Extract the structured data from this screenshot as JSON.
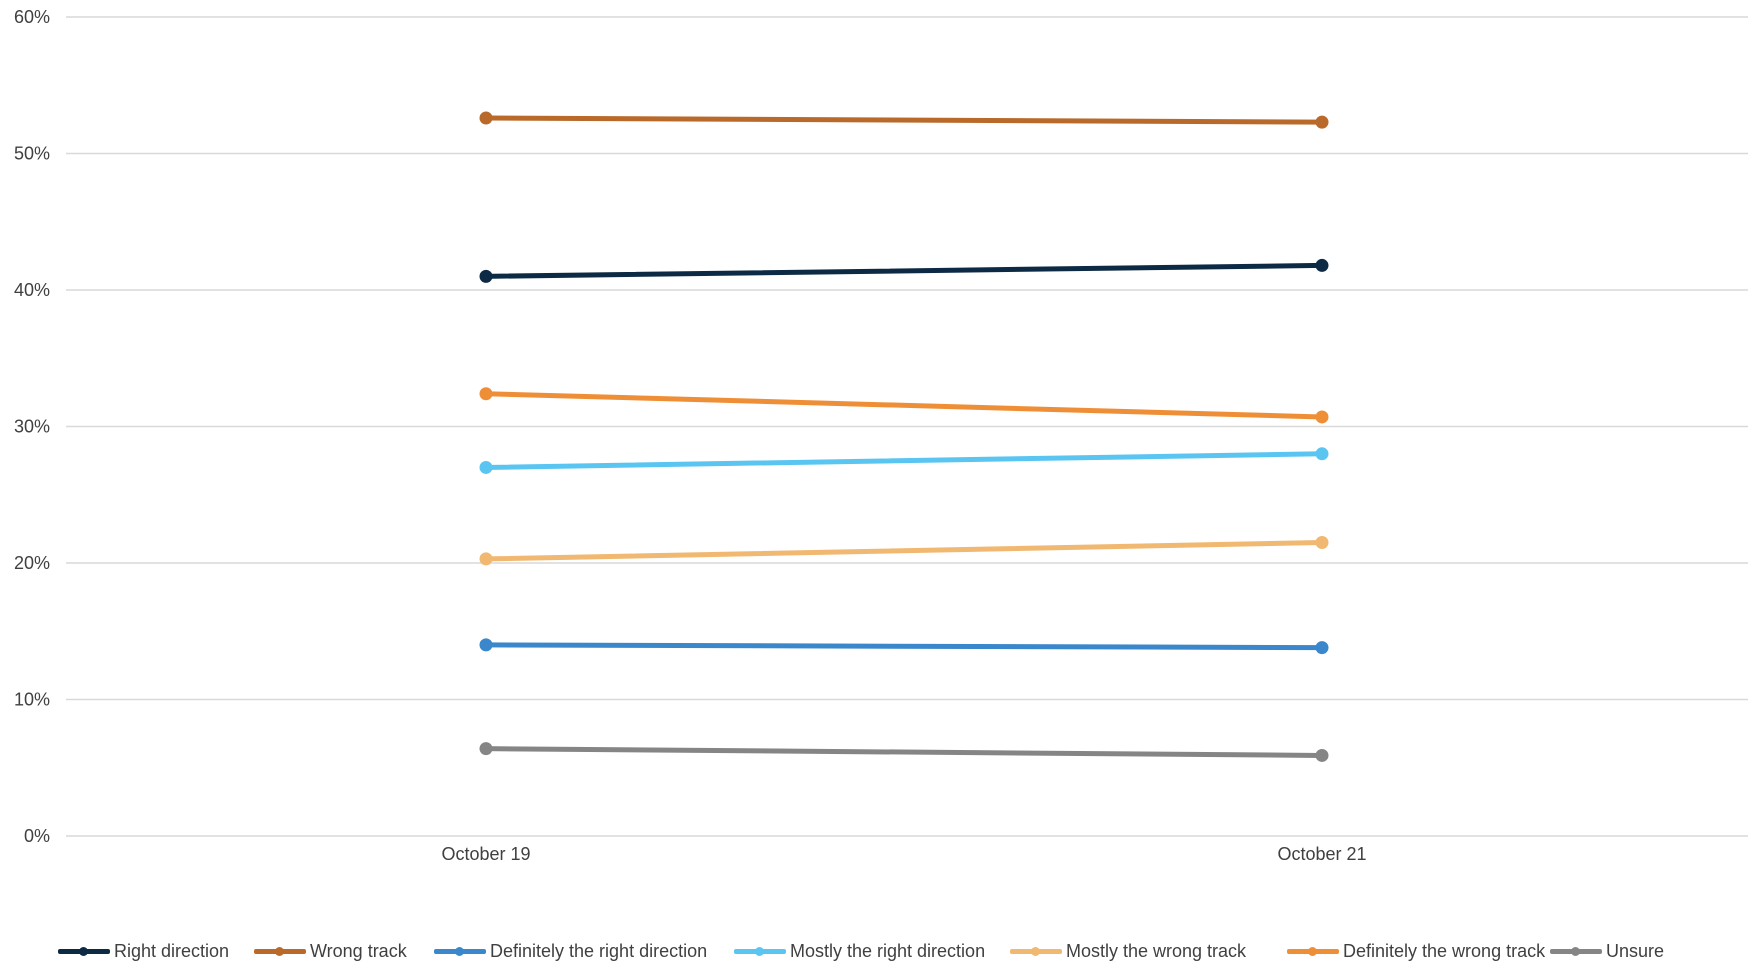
{
  "chart_data": {
    "type": "line",
    "title": "",
    "xlabel": "",
    "ylabel": "",
    "categories": [
      "October 19",
      "October 21"
    ],
    "ylim": [
      0,
      60
    ],
    "yticks": [
      "0%",
      "10%",
      "20%",
      "30%",
      "40%",
      "50%",
      "60%"
    ],
    "grid": true,
    "legend_position": "bottom",
    "series": [
      {
        "name": "Right direction",
        "color": "#0d2a45",
        "values": [
          41.0,
          41.8
        ]
      },
      {
        "name": "Wrong track",
        "color": "#b96a2a",
        "values": [
          52.6,
          52.3
        ]
      },
      {
        "name": "Definitely the right direction",
        "color": "#3a87cc",
        "values": [
          14.0,
          13.8
        ]
      },
      {
        "name": "Mostly the right direction",
        "color": "#5bc5f2",
        "values": [
          27.0,
          28.0
        ]
      },
      {
        "name": "Mostly the wrong track",
        "color": "#f0b870",
        "values": [
          20.3,
          21.5
        ]
      },
      {
        "name": "Definitely the wrong track",
        "color": "#ee8f37",
        "values": [
          32.4,
          30.7
        ]
      },
      {
        "name": "Unsure",
        "color": "#858585",
        "values": [
          6.4,
          5.9
        ]
      }
    ]
  }
}
